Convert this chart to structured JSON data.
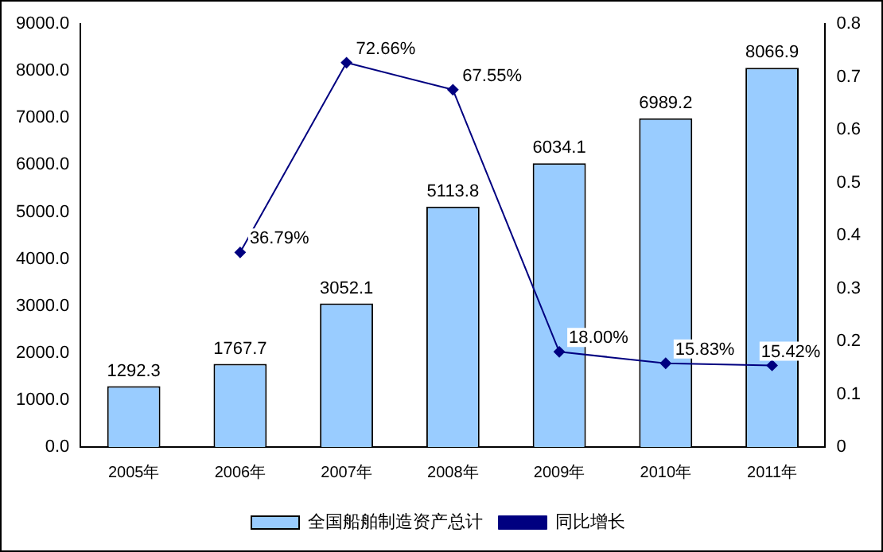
{
  "chart_data": {
    "type": "bar",
    "categories": [
      "2005年",
      "2006年",
      "2007年",
      "2008年",
      "2009年",
      "2010年",
      "2011年"
    ],
    "series": [
      {
        "name": "全国船舶制造资产总计",
        "color": "#99ccff",
        "values": [
          1292.3,
          1767.7,
          3052.1,
          5113.8,
          6034.1,
          6989.2,
          8066.9
        ],
        "value_labels": [
          "1292.3",
          "1767.7",
          "3052.1",
          "5113.8",
          "6034.1",
          "6989.2",
          "8066.9"
        ]
      },
      {
        "name": "同比增长",
        "type": "line",
        "axis": "y2",
        "color": "#000080",
        "values": [
          null,
          0.3679,
          0.7266,
          0.6755,
          0.18,
          0.1583,
          0.1542
        ],
        "value_labels": [
          null,
          "36.79%",
          "72.66%",
          "67.55%",
          "18.00%",
          "15.83%",
          "15.42%"
        ]
      }
    ],
    "ylim": [
      0,
      9000
    ],
    "yticks": [
      {
        "value": 0,
        "label": "0.0"
      },
      {
        "value": 1000,
        "label": "1000.0"
      },
      {
        "value": 2000,
        "label": "2000.0"
      },
      {
        "value": 3000,
        "label": "3000.0"
      },
      {
        "value": 4000,
        "label": "4000.0"
      },
      {
        "value": 5000,
        "label": "5000.0"
      },
      {
        "value": 6000,
        "label": "6000.0"
      },
      {
        "value": 7000,
        "label": "7000.0"
      },
      {
        "value": 8000,
        "label": "8000.0"
      },
      {
        "value": 9000,
        "label": "9000.0"
      }
    ],
    "y2lim": [
      0,
      0.8
    ],
    "y2ticks": [
      0,
      0.1,
      0.2,
      0.3,
      0.4,
      0.5,
      0.6,
      0.7,
      0.8
    ],
    "grid": false,
    "legend": "bottom",
    "marker": "diamond",
    "line_style": "solid"
  }
}
